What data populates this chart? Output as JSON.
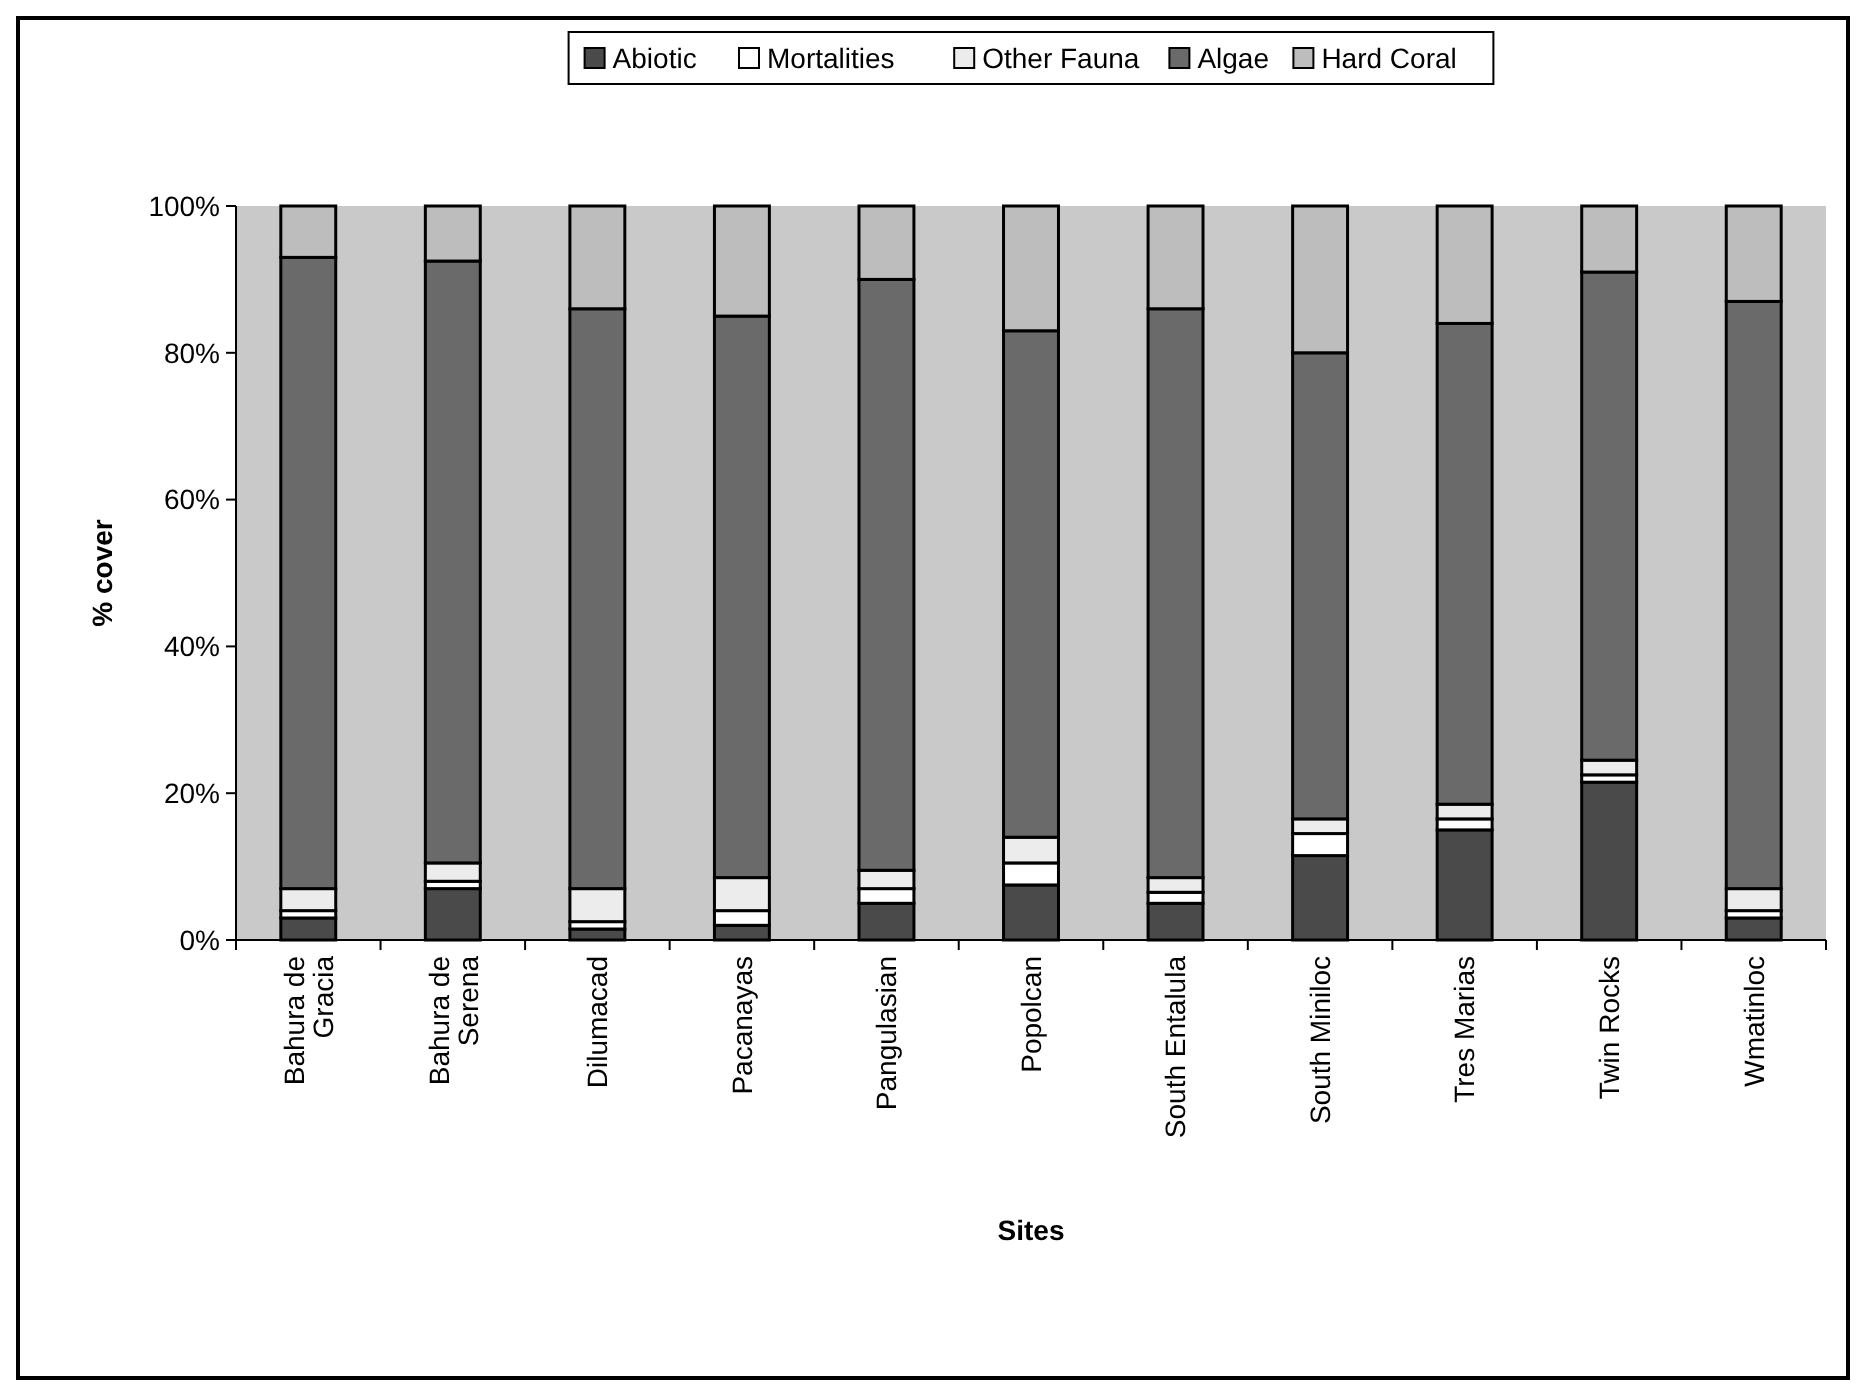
{
  "chart_data": {
    "type": "bar",
    "stacked": true,
    "xlabel": "Sites",
    "ylabel": "% cover",
    "categories": [
      "Bahura de Gracia",
      "Bahura de Serena",
      "Dilumacad",
      "Pacanayas",
      "Pangulasian",
      "Popolcan",
      "South Entalula",
      "South Miniloc",
      "Tres Marias",
      "Twin Rocks",
      "Wmatinloc"
    ],
    "series": [
      {
        "name": "Abiotic",
        "color": "#4a4a4a",
        "values": [
          3,
          7,
          1.5,
          2,
          5,
          7.5,
          5,
          11.5,
          15,
          21.5,
          3
        ]
      },
      {
        "name": "Mortalities",
        "color": "#ffffff",
        "values": [
          1,
          1,
          1,
          2,
          2,
          3,
          1.5,
          3,
          1.5,
          1,
          1
        ]
      },
      {
        "name": "Other Fauna",
        "color": "#ececec",
        "values": [
          3,
          2.5,
          4.5,
          4.5,
          2.5,
          3.5,
          2,
          2,
          2,
          2,
          3
        ]
      },
      {
        "name": "Algae",
        "color": "#6a6a6a",
        "values": [
          86,
          82,
          79,
          76.5,
          80.5,
          69,
          77.5,
          63.5,
          65.5,
          66.5,
          80
        ]
      },
      {
        "name": "Hard Coral",
        "color": "#bdbdbd",
        "values": [
          7,
          7.5,
          14,
          15,
          10,
          17,
          14,
          20,
          16,
          9,
          13
        ]
      }
    ],
    "ylim": [
      0,
      100
    ],
    "yticks": [
      {
        "value": 0,
        "label": "0%"
      },
      {
        "value": 20,
        "label": "20%"
      },
      {
        "value": 40,
        "label": "40%"
      },
      {
        "value": 60,
        "label": "60%"
      },
      {
        "value": 80,
        "label": "80%"
      },
      {
        "value": 100,
        "label": "100%"
      }
    ],
    "grid": false,
    "legend": "top"
  }
}
